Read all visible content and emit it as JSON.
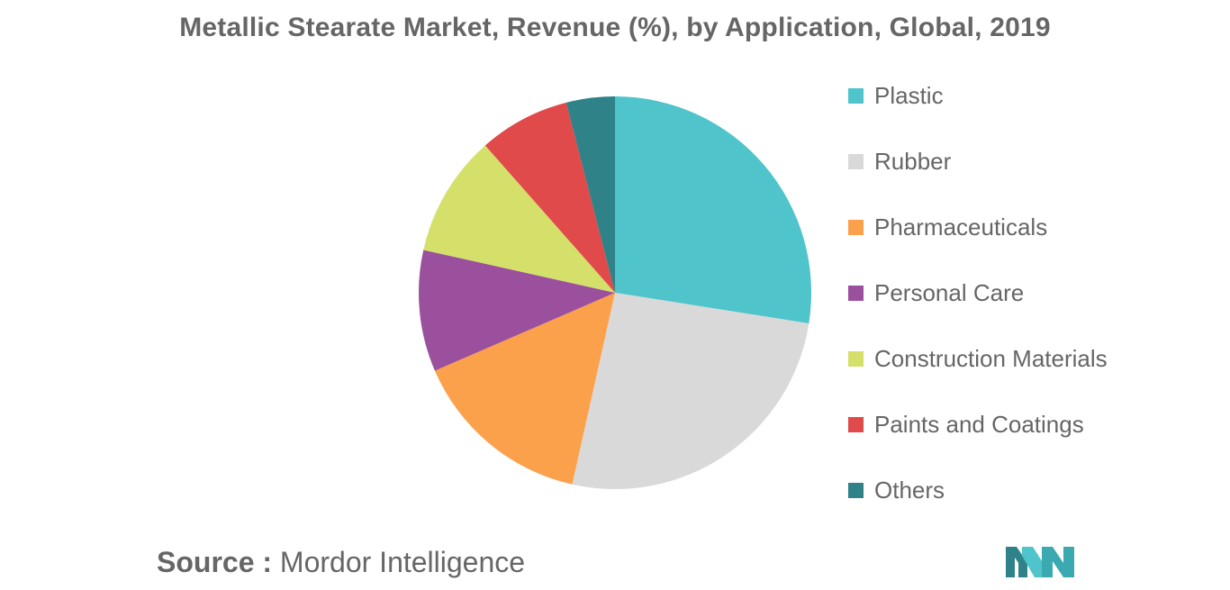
{
  "chart_data": {
    "type": "pie",
    "title": "Metallic Stearate Market, Revenue (%), by Application, Global, 2019",
    "categories": [
      "Plastic",
      "Rubber",
      "Pharmaceuticals",
      "Personal Care",
      "Construction Materials",
      "Paints and Coatings",
      "Others"
    ],
    "values": [
      27.5,
      26.0,
      15.0,
      10.0,
      10.0,
      7.5,
      4.0
    ],
    "colors": [
      "#4FC4CB",
      "#D9D9D9",
      "#FBA04B",
      "#9B509E",
      "#D4E06A",
      "#E04A4A",
      "#2E8288"
    ],
    "legend_position": "right",
    "start_angle": "12 o'clock",
    "direction": "clockwise"
  },
  "source": {
    "prefix": "Source :",
    "text": "Mordor Intelligence"
  },
  "logo": {
    "icon": "mordor-intelligence-logo-icon",
    "colors": [
      "#2E8288",
      "#4FC4CB"
    ]
  }
}
